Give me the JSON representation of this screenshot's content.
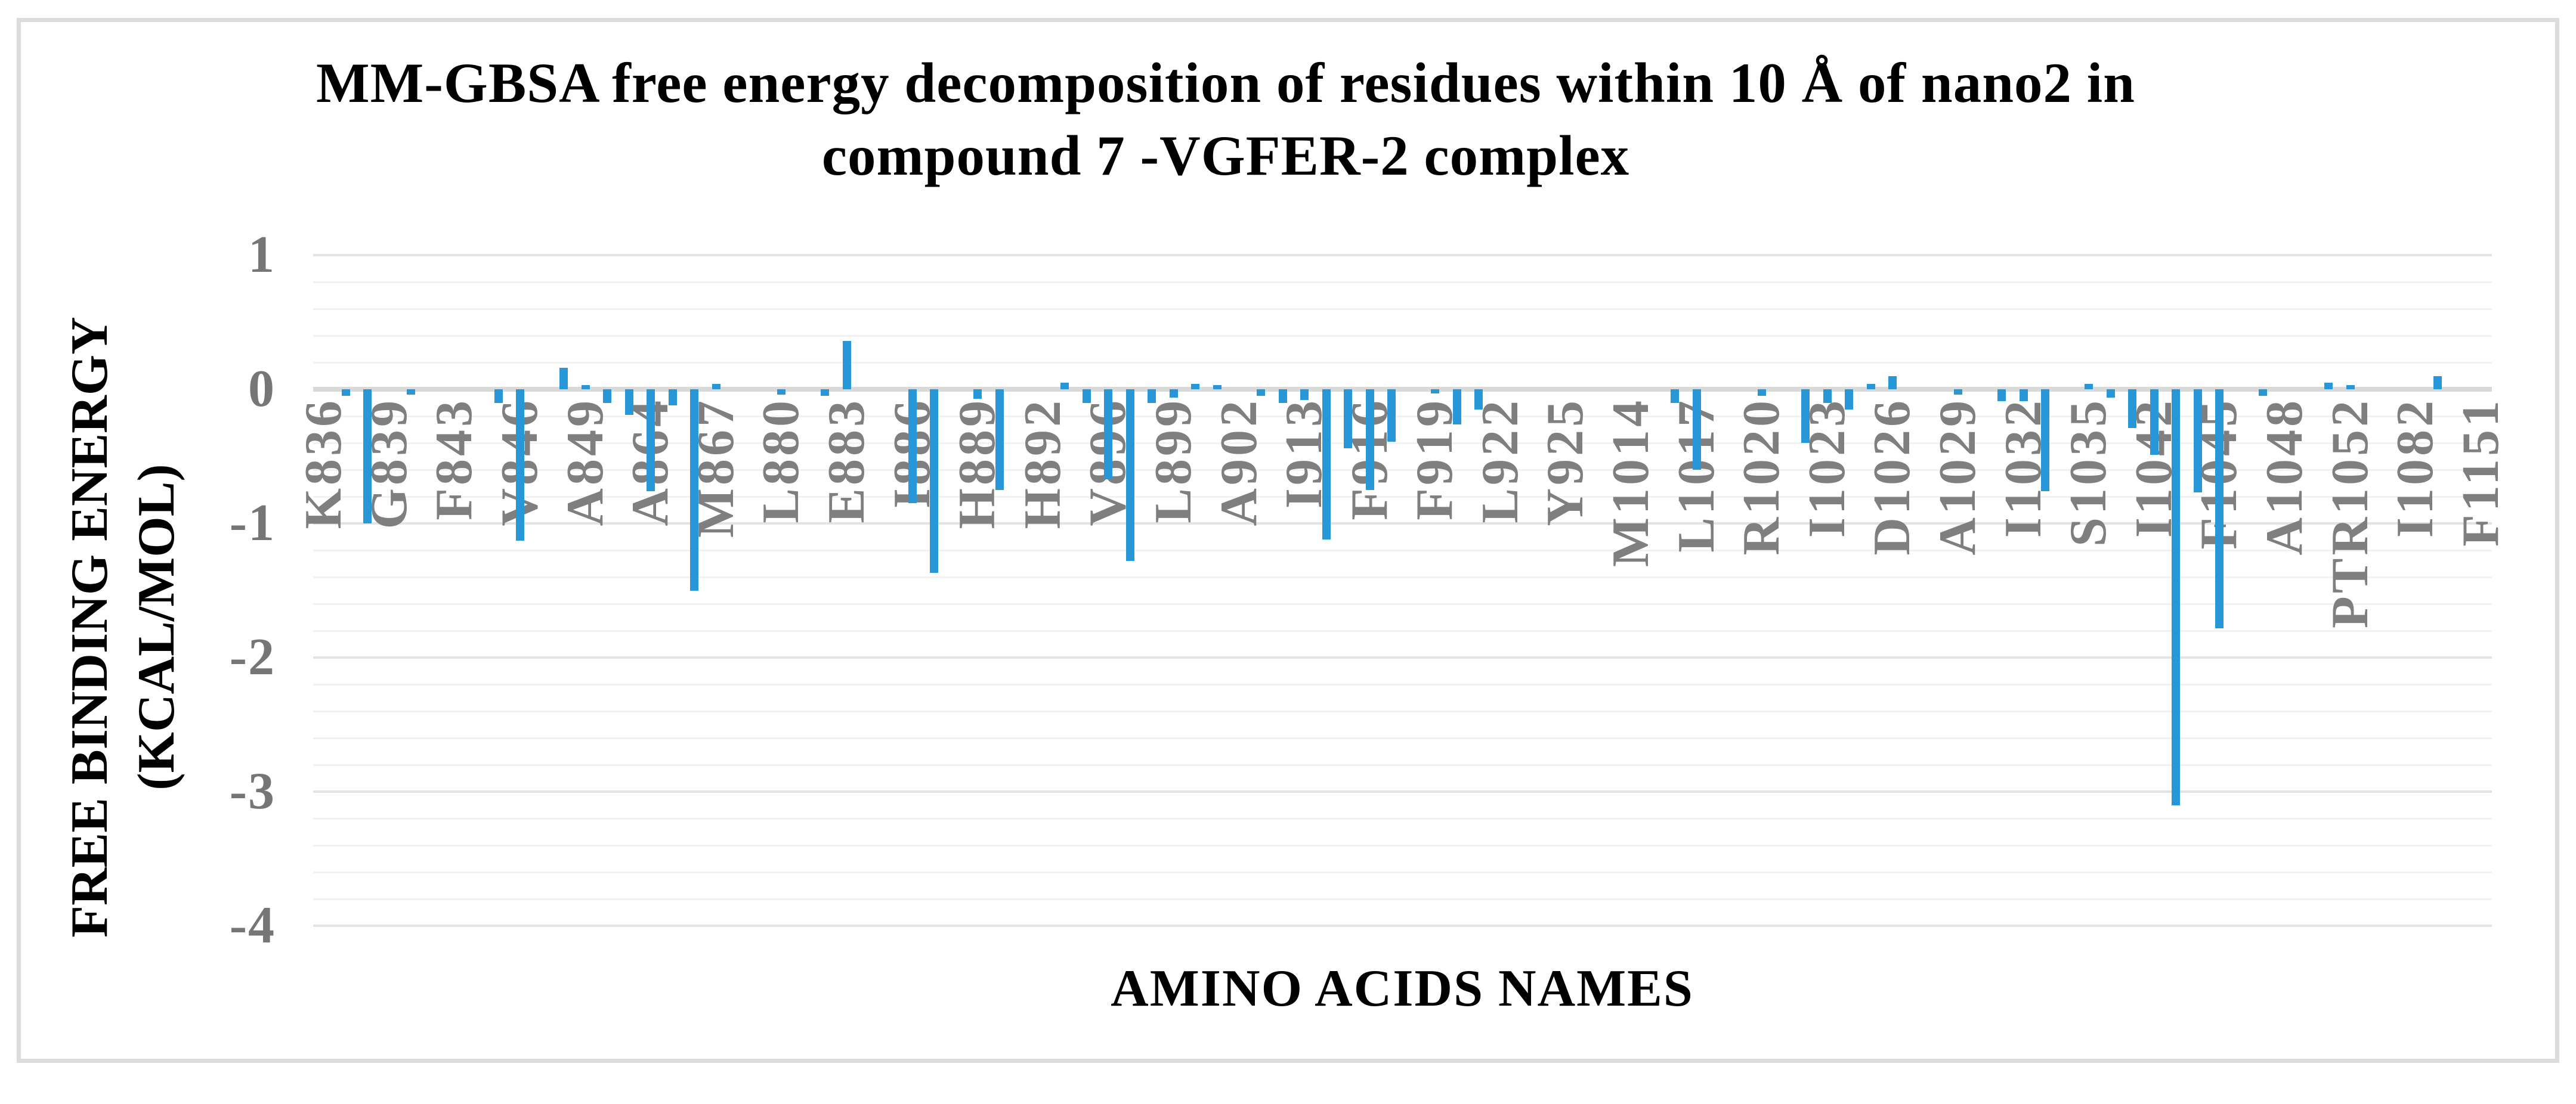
{
  "title": {
    "lines": [
      "MM-GBSA free energy decomposition of residues within 10 Å of nano2 in",
      "compound 7 -VGFER-2 complex"
    ]
  },
  "y_axis": {
    "title_lines": [
      "FREE BINDING ENERGY",
      "(KCAL/MOL)"
    ],
    "tick_labels": [
      "1",
      "0",
      "-1",
      "-2",
      "-3",
      "-4"
    ],
    "max": 1,
    "min": -4,
    "major_step": 1,
    "minor_step": 0.2
  },
  "x_axis": {
    "title": "AMINO ACIDS NAMES",
    "label_every_n_points": 3
  },
  "colors": {
    "bar": "#2797D7",
    "category_label": "#7F7F7F",
    "tick_label": "#767676",
    "grid_minor": "#F2F2F2",
    "grid_major": "#E3E3E3",
    "axis_line": "#D9D9D9",
    "border": "#DCDCDC",
    "title_text": "#000000"
  },
  "chart_data": {
    "type": "bar",
    "title": "MM-GBSA free energy decomposition of residues within 10 Å of nano2 in compound 7 -VGFER-2 complex",
    "xlabel": "AMINO ACIDS NAMES",
    "ylabel": "FREE BINDING ENERGY (KCAL/MOL)",
    "ylim": [
      -4,
      1
    ],
    "grid": true,
    "legend": false,
    "points": [
      {
        "label": "K836",
        "value": 0
      },
      {
        "label": "",
        "value": -0.05
      },
      {
        "label": "",
        "value": -1.0
      },
      {
        "label": "G839",
        "value": 0
      },
      {
        "label": "",
        "value": -0.04
      },
      {
        "label": "",
        "value": 0
      },
      {
        "label": "F843",
        "value": 0
      },
      {
        "label": "",
        "value": 0
      },
      {
        "label": "",
        "value": -0.1
      },
      {
        "label": "V846",
        "value": -1.13
      },
      {
        "label": "",
        "value": 0
      },
      {
        "label": "",
        "value": 0.16
      },
      {
        "label": "A849",
        "value": 0.03
      },
      {
        "label": "",
        "value": -0.1
      },
      {
        "label": "",
        "value": -0.19
      },
      {
        "label": "A864",
        "value": -0.76
      },
      {
        "label": "",
        "value": -0.12
      },
      {
        "label": "",
        "value": -1.5
      },
      {
        "label": "M867",
        "value": 0.04
      },
      {
        "label": "",
        "value": 0
      },
      {
        "label": "",
        "value": 0
      },
      {
        "label": "L880",
        "value": -0.04
      },
      {
        "label": "",
        "value": 0
      },
      {
        "label": "",
        "value": -0.05
      },
      {
        "label": "E883",
        "value": 0.36
      },
      {
        "label": "",
        "value": 0
      },
      {
        "label": "",
        "value": 0
      },
      {
        "label": "I886",
        "value": -0.85
      },
      {
        "label": "",
        "value": -1.37
      },
      {
        "label": "",
        "value": 0
      },
      {
        "label": "H889",
        "value": -0.07
      },
      {
        "label": "",
        "value": -0.75
      },
      {
        "label": "",
        "value": 0
      },
      {
        "label": "H892",
        "value": 0
      },
      {
        "label": "",
        "value": 0.05
      },
      {
        "label": "",
        "value": -0.1
      },
      {
        "label": "V896",
        "value": -0.67
      },
      {
        "label": "",
        "value": -1.28
      },
      {
        "label": "",
        "value": -0.1
      },
      {
        "label": "L899",
        "value": -0.06
      },
      {
        "label": "",
        "value": 0.04
      },
      {
        "label": "",
        "value": 0.03
      },
      {
        "label": "A902",
        "value": 0
      },
      {
        "label": "",
        "value": -0.05
      },
      {
        "label": "",
        "value": -0.1
      },
      {
        "label": "I913",
        "value": -0.08
      },
      {
        "label": "",
        "value": -1.12
      },
      {
        "label": "",
        "value": -0.44
      },
      {
        "label": "F916",
        "value": -0.75
      },
      {
        "label": "",
        "value": -0.39
      },
      {
        "label": "",
        "value": 0
      },
      {
        "label": "F919",
        "value": -0.03
      },
      {
        "label": "",
        "value": -0.26
      },
      {
        "label": "",
        "value": -0.15
      },
      {
        "label": "L922",
        "value": 0
      },
      {
        "label": "",
        "value": 0
      },
      {
        "label": "",
        "value": 0
      },
      {
        "label": "Y925",
        "value": 0
      },
      {
        "label": "",
        "value": 0
      },
      {
        "label": "",
        "value": 0
      },
      {
        "label": "M1014",
        "value": 0
      },
      {
        "label": "",
        "value": 0
      },
      {
        "label": "",
        "value": -0.1
      },
      {
        "label": "L1017",
        "value": -0.6
      },
      {
        "label": "",
        "value": 0
      },
      {
        "label": "",
        "value": 0
      },
      {
        "label": "R1020",
        "value": -0.05
      },
      {
        "label": "",
        "value": 0
      },
      {
        "label": "",
        "value": -0.4
      },
      {
        "label": "I1023",
        "value": -0.1
      },
      {
        "label": "",
        "value": -0.15
      },
      {
        "label": "",
        "value": 0.04
      },
      {
        "label": "D1026",
        "value": 0.1
      },
      {
        "label": "",
        "value": 0
      },
      {
        "label": "",
        "value": 0
      },
      {
        "label": "A1029",
        "value": -0.04
      },
      {
        "label": "",
        "value": 0
      },
      {
        "label": "",
        "value": -0.09
      },
      {
        "label": "I1032",
        "value": -0.09
      },
      {
        "label": "",
        "value": -0.76
      },
      {
        "label": "",
        "value": 0
      },
      {
        "label": "S1035",
        "value": 0.04
      },
      {
        "label": "",
        "value": -0.06
      },
      {
        "label": "",
        "value": -0.29
      },
      {
        "label": "I1042",
        "value": -0.49
      },
      {
        "label": "",
        "value": -3.1
      },
      {
        "label": "",
        "value": -0.77
      },
      {
        "label": "F1045",
        "value": -1.78
      },
      {
        "label": "",
        "value": 0
      },
      {
        "label": "",
        "value": -0.05
      },
      {
        "label": "A1048",
        "value": 0
      },
      {
        "label": "",
        "value": 0
      },
      {
        "label": "",
        "value": 0.05
      },
      {
        "label": "PTR1052",
        "value": 0.03
      },
      {
        "label": "",
        "value": 0
      },
      {
        "label": "",
        "value": 0
      },
      {
        "label": "I1082",
        "value": 0
      },
      {
        "label": "",
        "value": 0.1
      },
      {
        "label": "",
        "value": 0
      },
      {
        "label": "F1151",
        "value": 0
      }
    ]
  }
}
